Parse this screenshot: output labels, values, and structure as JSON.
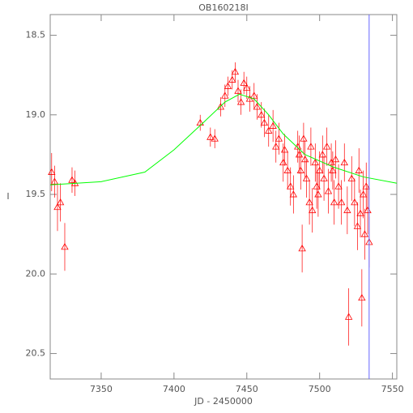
{
  "chart_data": {
    "type": "scatter",
    "title": "OB160218I",
    "xlabel": "JD - 2450000",
    "ylabel": "I",
    "xlim": [
      7315,
      7553
    ],
    "ylim": [
      20.66,
      18.37
    ],
    "xticks": [
      7350,
      7400,
      7450,
      7500,
      7550
    ],
    "yticks": [
      18.5,
      {
        "value": 19.0,
        "label": "19.0"
      },
      19.5,
      {
        "value": 20.0,
        "label": "20.0"
      },
      20.5
    ],
    "series": [
      {
        "color": "#ff0000",
        "x": [
          7316,
          7318,
          7320,
          7322,
          7325,
          7330,
          7332,
          7418,
          7425,
          7428,
          7432,
          7435,
          7437,
          7440,
          7442,
          7444,
          7446,
          7448,
          7450,
          7452,
          7455,
          7457,
          7460,
          7462,
          7465,
          7468,
          7470,
          7472,
          7475,
          7476,
          7478,
          7480,
          7482,
          7485,
          7486,
          7487,
          7488,
          7489,
          7490,
          7491,
          7493,
          7494,
          7495,
          7497,
          7498,
          7499,
          7500,
          7502,
          7503,
          7505,
          7506,
          7508,
          7509,
          7510,
          7511,
          7513,
          7515,
          7517,
          7519,
          7520,
          7522,
          7524,
          7526,
          7527,
          7528,
          7529,
          7530,
          7531,
          7532,
          7533,
          7534
        ],
        "values": [
          19.36,
          19.42,
          19.58,
          19.55,
          19.83,
          19.41,
          19.43,
          19.05,
          19.14,
          19.15,
          18.95,
          18.88,
          18.82,
          18.78,
          18.73,
          18.85,
          18.92,
          18.8,
          18.83,
          18.9,
          18.88,
          18.95,
          19.0,
          19.05,
          19.1,
          19.07,
          19.2,
          19.15,
          19.3,
          19.22,
          19.35,
          19.45,
          19.5,
          19.2,
          19.25,
          19.35,
          19.84,
          19.15,
          19.28,
          19.4,
          19.55,
          19.2,
          19.6,
          19.3,
          19.45,
          19.5,
          19.35,
          19.25,
          19.4,
          19.2,
          19.48,
          19.3,
          19.35,
          19.55,
          19.28,
          19.45,
          19.55,
          19.3,
          19.6,
          20.27,
          19.4,
          19.55,
          19.7,
          19.35,
          19.62,
          20.15,
          19.5,
          19.75,
          19.45,
          19.6,
          19.8
        ],
        "errors": [
          0.12,
          0.1,
          0.15,
          0.12,
          0.15,
          0.08,
          0.08,
          0.05,
          0.06,
          0.06,
          0.06,
          0.07,
          0.06,
          0.06,
          0.06,
          0.07,
          0.08,
          0.07,
          0.07,
          0.08,
          0.08,
          0.08,
          0.08,
          0.09,
          0.1,
          0.1,
          0.1,
          0.1,
          0.12,
          0.1,
          0.12,
          0.12,
          0.12,
          0.1,
          0.12,
          0.12,
          0.15,
          0.1,
          0.12,
          0.12,
          0.14,
          0.12,
          0.14,
          0.12,
          0.14,
          0.14,
          0.12,
          0.12,
          0.14,
          0.12,
          0.14,
          0.12,
          0.12,
          0.14,
          0.12,
          0.14,
          0.14,
          0.12,
          0.15,
          0.18,
          0.14,
          0.15,
          0.15,
          0.14,
          0.15,
          0.18,
          0.15,
          0.16,
          0.15,
          0.15,
          0.16
        ]
      }
    ],
    "model": {
      "color": "#00ff00",
      "x": [
        7315,
        7350,
        7380,
        7400,
        7420,
        7435,
        7445,
        7455,
        7465,
        7475,
        7490,
        7510,
        7530,
        7553
      ],
      "values": [
        19.44,
        19.42,
        19.36,
        19.22,
        19.05,
        18.92,
        18.87,
        18.9,
        19.0,
        19.12,
        19.25,
        19.33,
        19.39,
        19.43
      ]
    },
    "vline": {
      "x": 7534,
      "color": "#6666ff"
    }
  }
}
